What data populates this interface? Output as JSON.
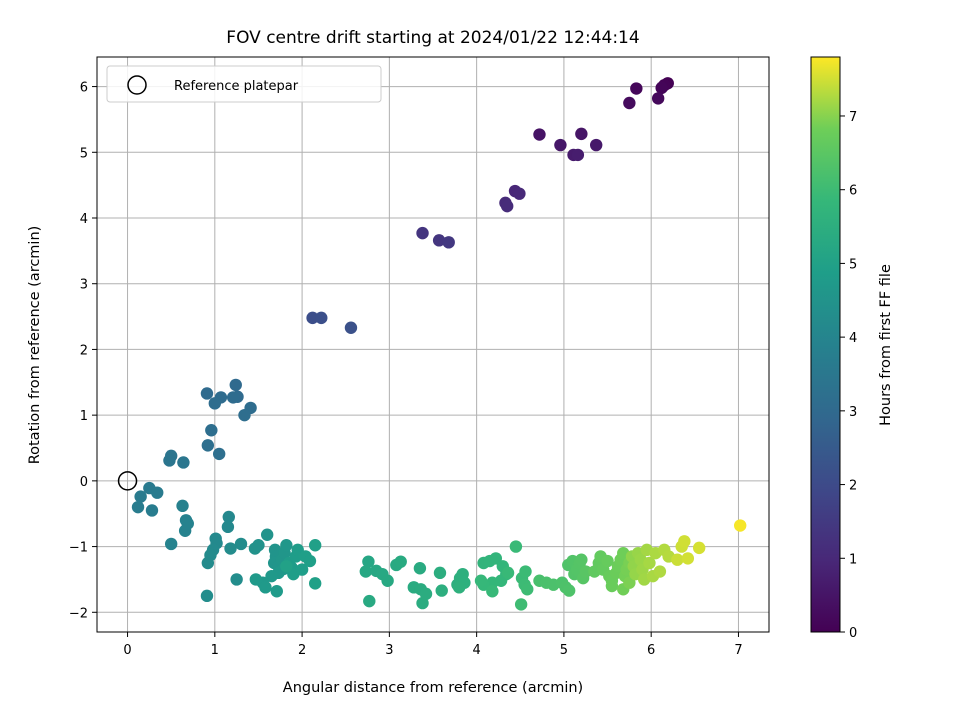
{
  "chart_data": {
    "type": "scatter",
    "title": "FOV centre drift starting at 2024/01/22 12:44:14",
    "xlabel": "Angular distance from reference (arcmin)",
    "ylabel": "Rotation from reference (arcmin)",
    "xlim": [
      -0.35,
      7.35
    ],
    "ylim": [
      -2.3,
      6.45
    ],
    "xticks": [
      "0",
      "1",
      "2",
      "3",
      "4",
      "5",
      "6",
      "7"
    ],
    "yticks": [
      "−2",
      "−1",
      "0",
      "1",
      "2",
      "3",
      "4",
      "5",
      "6"
    ],
    "grid": true,
    "legend": {
      "position": "upper-left",
      "entries": [
        {
          "label": "Reference platepar",
          "marker": "hollow-circle"
        }
      ]
    },
    "reference_point": {
      "x": 0,
      "y": 0
    },
    "colorbar": {
      "label": "Hours from first FF file",
      "colormap": "viridis",
      "range": [
        0,
        7.8
      ],
      "ticks": [
        "0",
        "1",
        "2",
        "3",
        "4",
        "5",
        "6",
        "7"
      ]
    },
    "points": [
      [
        6.19,
        6.05,
        0.0
      ],
      [
        6.15,
        6.02,
        0.05
      ],
      [
        6.12,
        5.98,
        0.1
      ],
      [
        5.83,
        5.97,
        0.15
      ],
      [
        6.08,
        5.82,
        0.2
      ],
      [
        5.75,
        5.75,
        0.25
      ],
      [
        4.72,
        5.27,
        0.45
      ],
      [
        5.2,
        5.28,
        0.5
      ],
      [
        4.96,
        5.11,
        0.55
      ],
      [
        5.37,
        5.11,
        0.6
      ],
      [
        5.11,
        4.96,
        0.65
      ],
      [
        5.16,
        4.96,
        0.7
      ],
      [
        4.44,
        4.41,
        0.95
      ],
      [
        4.49,
        4.37,
        1.0
      ],
      [
        4.33,
        4.23,
        1.05
      ],
      [
        4.35,
        4.18,
        1.1
      ],
      [
        3.38,
        3.77,
        1.35
      ],
      [
        3.57,
        3.66,
        1.4
      ],
      [
        3.68,
        3.63,
        1.45
      ],
      [
        2.12,
        2.48,
        2.1
      ],
      [
        2.22,
        2.48,
        2.15
      ],
      [
        2.56,
        2.33,
        2.2
      ],
      [
        1.24,
        1.46,
        3.0
      ],
      [
        0.91,
        1.33,
        3.02
      ],
      [
        1.26,
        1.28,
        3.04
      ],
      [
        1.07,
        1.27,
        3.06
      ],
      [
        1.21,
        1.27,
        3.08
      ],
      [
        1.41,
        1.11,
        3.1
      ],
      [
        1.0,
        1.18,
        3.12
      ],
      [
        1.34,
        1.0,
        3.14
      ],
      [
        0.96,
        0.77,
        3.16
      ],
      [
        0.92,
        0.54,
        3.18
      ],
      [
        1.05,
        0.41,
        3.2
      ],
      [
        0.5,
        0.38,
        3.4
      ],
      [
        0.48,
        0.31,
        3.42
      ],
      [
        0.64,
        0.28,
        3.44
      ],
      [
        0.25,
        -0.11,
        3.6
      ],
      [
        0.34,
        -0.18,
        3.62
      ],
      [
        0.15,
        -0.24,
        3.64
      ],
      [
        0.12,
        -0.4,
        3.66
      ],
      [
        0.28,
        -0.45,
        3.68
      ],
      [
        0.63,
        -0.38,
        3.85
      ],
      [
        0.67,
        -0.6,
        3.87
      ],
      [
        0.69,
        -0.65,
        3.89
      ],
      [
        0.66,
        -0.76,
        3.91
      ],
      [
        0.5,
        -0.96,
        3.93
      ],
      [
        1.16,
        -0.55,
        4.1
      ],
      [
        1.15,
        -0.7,
        4.12
      ],
      [
        1.01,
        -0.88,
        4.14
      ],
      [
        1.02,
        -0.95,
        4.16
      ],
      [
        0.98,
        -1.05,
        4.18
      ],
      [
        0.95,
        -1.13,
        4.2
      ],
      [
        0.92,
        -1.25,
        4.22
      ],
      [
        1.18,
        -1.03,
        4.24
      ],
      [
        1.3,
        -0.96,
        4.26
      ],
      [
        0.91,
        -1.75,
        4.28
      ],
      [
        1.25,
        -1.5,
        4.3
      ],
      [
        1.46,
        -1.03,
        4.45
      ],
      [
        1.5,
        -0.98,
        4.47
      ],
      [
        1.6,
        -0.82,
        4.49
      ],
      [
        1.69,
        -1.05,
        4.51
      ],
      [
        1.7,
        -1.15,
        4.53
      ],
      [
        1.68,
        -1.25,
        4.55
      ],
      [
        1.73,
        -1.3,
        4.57
      ],
      [
        1.77,
        -1.2,
        4.59
      ],
      [
        1.8,
        -1.1,
        4.61
      ],
      [
        1.82,
        -0.98,
        4.63
      ],
      [
        1.79,
        -1.34,
        4.65
      ],
      [
        1.73,
        -1.4,
        4.67
      ],
      [
        1.65,
        -1.45,
        4.69
      ],
      [
        1.55,
        -1.55,
        4.71
      ],
      [
        1.47,
        -1.5,
        4.73
      ],
      [
        1.58,
        -1.62,
        4.75
      ],
      [
        1.71,
        -1.68,
        4.77
      ],
      [
        1.85,
        -1.25,
        4.79
      ],
      [
        1.88,
        -1.32,
        4.81
      ],
      [
        1.93,
        -1.15,
        4.83
      ],
      [
        1.95,
        -1.05,
        4.85
      ],
      [
        1.9,
        -1.42,
        4.87
      ],
      [
        2.0,
        -1.35,
        4.89
      ],
      [
        2.04,
        -1.15,
        4.91
      ],
      [
        2.09,
        -1.22,
        4.93
      ],
      [
        2.15,
        -0.98,
        4.95
      ],
      [
        2.15,
        -1.56,
        4.97
      ],
      [
        1.82,
        -1.3,
        4.99
      ],
      [
        2.76,
        -1.23,
        5.2
      ],
      [
        2.73,
        -1.38,
        5.22
      ],
      [
        2.85,
        -1.37,
        5.24
      ],
      [
        2.92,
        -1.42,
        5.26
      ],
      [
        2.98,
        -1.52,
        5.28
      ],
      [
        2.77,
        -1.83,
        5.3
      ],
      [
        3.08,
        -1.28,
        5.32
      ],
      [
        3.13,
        -1.23,
        5.34
      ],
      [
        3.35,
        -1.33,
        5.36
      ],
      [
        3.28,
        -1.62,
        5.38
      ],
      [
        3.36,
        -1.65,
        5.4
      ],
      [
        3.38,
        -1.86,
        5.42
      ],
      [
        3.42,
        -1.72,
        5.44
      ],
      [
        3.58,
        -1.4,
        5.46
      ],
      [
        3.6,
        -1.67,
        5.48
      ],
      [
        3.78,
        -1.58,
        5.5
      ],
      [
        3.81,
        -1.48,
        5.52
      ],
      [
        3.84,
        -1.42,
        5.54
      ],
      [
        3.86,
        -1.55,
        5.56
      ],
      [
        3.8,
        -1.62,
        5.58
      ],
      [
        4.08,
        -1.25,
        5.7
      ],
      [
        4.15,
        -1.22,
        5.72
      ],
      [
        4.22,
        -1.18,
        5.74
      ],
      [
        4.3,
        -1.3,
        5.76
      ],
      [
        4.34,
        -1.42,
        5.78
      ],
      [
        4.28,
        -1.52,
        5.8
      ],
      [
        4.18,
        -1.55,
        5.82
      ],
      [
        4.08,
        -1.58,
        5.84
      ],
      [
        4.05,
        -1.52,
        5.86
      ],
      [
        4.18,
        -1.68,
        5.88
      ],
      [
        4.36,
        -1.4,
        5.9
      ],
      [
        4.45,
        -1.0,
        5.92
      ],
      [
        4.52,
        -1.48,
        5.94
      ],
      [
        4.56,
        -1.38,
        5.96
      ],
      [
        4.55,
        -1.58,
        5.98
      ],
      [
        4.58,
        -1.65,
        6.0
      ],
      [
        4.51,
        -1.88,
        6.02
      ],
      [
        4.72,
        -1.52,
        6.2
      ],
      [
        4.8,
        -1.55,
        6.22
      ],
      [
        4.88,
        -1.58,
        6.24
      ],
      [
        4.98,
        -1.55,
        6.26
      ],
      [
        5.02,
        -1.62,
        6.28
      ],
      [
        5.06,
        -1.67,
        6.3
      ],
      [
        5.05,
        -1.28,
        6.32
      ],
      [
        5.1,
        -1.22,
        6.34
      ],
      [
        5.12,
        -1.42,
        6.36
      ],
      [
        5.15,
        -1.35,
        6.38
      ],
      [
        5.18,
        -1.26,
        6.4
      ],
      [
        5.2,
        -1.2,
        6.42
      ],
      [
        5.22,
        -1.48,
        6.44
      ],
      [
        5.25,
        -1.38,
        6.46
      ],
      [
        5.35,
        -1.38,
        6.6
      ],
      [
        5.4,
        -1.25,
        6.62
      ],
      [
        5.42,
        -1.15,
        6.64
      ],
      [
        5.45,
        -1.35,
        6.66
      ],
      [
        5.5,
        -1.22,
        6.68
      ],
      [
        5.52,
        -1.45,
        6.7
      ],
      [
        5.55,
        -1.52,
        6.72
      ],
      [
        5.55,
        -1.6,
        6.74
      ],
      [
        5.6,
        -1.4,
        6.76
      ],
      [
        5.62,
        -1.3,
        6.78
      ],
      [
        5.65,
        -1.2,
        6.8
      ],
      [
        5.68,
        -1.1,
        6.82
      ],
      [
        5.68,
        -1.65,
        6.84
      ],
      [
        5.7,
        -1.45,
        6.86
      ],
      [
        5.72,
        -1.35,
        6.88
      ],
      [
        5.75,
        -1.25,
        6.9
      ],
      [
        5.75,
        -1.55,
        6.92
      ],
      [
        5.78,
        -1.15,
        7.05
      ],
      [
        5.8,
        -1.3,
        7.07
      ],
      [
        5.82,
        -1.42,
        7.09
      ],
      [
        5.85,
        -1.1,
        7.11
      ],
      [
        5.88,
        -1.2,
        7.13
      ],
      [
        5.9,
        -1.35,
        7.15
      ],
      [
        5.92,
        -1.5,
        7.17
      ],
      [
        5.95,
        -1.05,
        7.19
      ],
      [
        5.98,
        -1.25,
        7.21
      ],
      [
        6.02,
        -1.45,
        7.23
      ],
      [
        6.05,
        -1.1,
        7.25
      ],
      [
        6.1,
        -1.38,
        7.27
      ],
      [
        6.15,
        -1.05,
        7.29
      ],
      [
        6.2,
        -1.15,
        7.31
      ],
      [
        6.3,
        -1.2,
        7.45
      ],
      [
        6.35,
        -1.0,
        7.47
      ],
      [
        6.38,
        -0.92,
        7.49
      ],
      [
        6.42,
        -1.18,
        7.51
      ],
      [
        6.55,
        -1.02,
        7.53
      ],
      [
        7.02,
        -0.68,
        7.75
      ]
    ]
  }
}
